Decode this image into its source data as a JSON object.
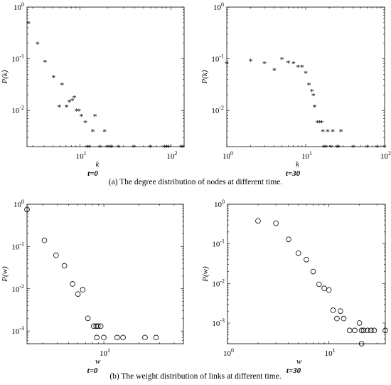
{
  "captions": {
    "top": "(a) The degree distribution of nodes at different time.",
    "bottom": "(b) The weight distribution of links at different time."
  },
  "chart_data": [
    {
      "type": "scatter",
      "marker": "asterisk",
      "xlabel": "k",
      "ylabel": "P(k)",
      "subtitle": "t=0",
      "xscale": "log",
      "yscale": "log",
      "xlim": [
        2.6,
        140
      ],
      "ylim": [
        0.002,
        1
      ],
      "xticks": [
        {
          "v": 10,
          "b": "10",
          "e": "1"
        },
        {
          "v": 100,
          "b": "10",
          "e": "2"
        }
      ],
      "yticks": [
        {
          "v": 0.01,
          "b": "10",
          "e": "-2"
        },
        {
          "v": 0.1,
          "b": "10",
          "e": "-1"
        },
        {
          "v": 1,
          "b": "10",
          "e": "0"
        }
      ],
      "points": [
        [
          2.7,
          0.5
        ],
        [
          3.4,
          0.2
        ],
        [
          4.1,
          0.088
        ],
        [
          5.1,
          0.045
        ],
        [
          6.3,
          0.032
        ],
        [
          5.9,
          0.012
        ],
        [
          7.1,
          0.012
        ],
        [
          7.6,
          0.015
        ],
        [
          8.2,
          0.016
        ],
        [
          8.6,
          0.018
        ],
        [
          9.1,
          0.01
        ],
        [
          9.7,
          0.01
        ],
        [
          10.3,
          0.008
        ],
        [
          11.4,
          0.006
        ],
        [
          11.9,
          0.002
        ],
        [
          12.6,
          0.002
        ],
        [
          13.8,
          0.004
        ],
        [
          14.6,
          0.008
        ],
        [
          16.6,
          0.002
        ],
        [
          18.6,
          0.004
        ],
        [
          19.8,
          0.002
        ],
        [
          21.4,
          0.002
        ],
        [
          22.2,
          0.002
        ],
        [
          26.5,
          0.002
        ],
        [
          39,
          0.002
        ],
        [
          59,
          0.002
        ],
        [
          85,
          0.002
        ],
        [
          90,
          0.002
        ],
        [
          95,
          0.002
        ],
        [
          130,
          0.002
        ],
        [
          136,
          0.002
        ]
      ]
    },
    {
      "type": "scatter",
      "marker": "asterisk",
      "xlabel": "k",
      "ylabel": "P(k)",
      "subtitle": "t=30",
      "xscale": "log",
      "yscale": "log",
      "xlim": [
        1,
        100
      ],
      "ylim": [
        0.002,
        1
      ],
      "xticks": [
        {
          "v": 1,
          "b": "10",
          "e": "0"
        },
        {
          "v": 10,
          "b": "10",
          "e": "1"
        },
        {
          "v": 100,
          "b": "10",
          "e": "2"
        }
      ],
      "yticks": [
        {
          "v": 0.01,
          "b": "10",
          "e": "-2"
        },
        {
          "v": 0.1,
          "b": "10",
          "e": "-1"
        },
        {
          "v": 1,
          "b": "10",
          "e": "0"
        }
      ],
      "points": [
        [
          1,
          0.083
        ],
        [
          2,
          0.093
        ],
        [
          3,
          0.083
        ],
        [
          4,
          0.061
        ],
        [
          5,
          0.1
        ],
        [
          6,
          0.085
        ],
        [
          7,
          0.083
        ],
        [
          8,
          0.071
        ],
        [
          9,
          0.071
        ],
        [
          10,
          0.054
        ],
        [
          11,
          0.032
        ],
        [
          12,
          0.024
        ],
        [
          12.5,
          0.02
        ],
        [
          13,
          0.012
        ],
        [
          14,
          0.006
        ],
        [
          15,
          0.006
        ],
        [
          16,
          0.006
        ],
        [
          16.5,
          0.004
        ],
        [
          17,
          0.002
        ],
        [
          18,
          0.002
        ],
        [
          19,
          0.004
        ],
        [
          21,
          0.002
        ],
        [
          22,
          0.004
        ],
        [
          25,
          0.002
        ],
        [
          26,
          0.002
        ],
        [
          28,
          0.004
        ],
        [
          40,
          0.002
        ],
        [
          60,
          0.002
        ],
        [
          80,
          0.002
        ],
        [
          100,
          0.002
        ]
      ]
    },
    {
      "type": "scatter",
      "marker": "circle",
      "xlabel": "w",
      "ylabel": "P(w)",
      "subtitle": "t=0",
      "xscale": "log",
      "yscale": "log",
      "xlim": [
        2.2,
        48
      ],
      "ylim": [
        0.0005,
        1
      ],
      "xticks": [
        {
          "v": 10,
          "b": "10",
          "e": "1"
        }
      ],
      "yticks": [
        {
          "v": 0.001,
          "b": "10",
          "e": "-3"
        },
        {
          "v": 0.01,
          "b": "10",
          "e": "-2"
        },
        {
          "v": 0.1,
          "b": "10",
          "e": "-1"
        },
        {
          "v": 1,
          "b": "10",
          "e": "0"
        }
      ],
      "points": [
        [
          2.2,
          0.75
        ],
        [
          3.1,
          0.14
        ],
        [
          3.9,
          0.062
        ],
        [
          4.6,
          0.035
        ],
        [
          5.4,
          0.013
        ],
        [
          6,
          0.0075
        ],
        [
          6.6,
          0.0095
        ],
        [
          7.3,
          0.002
        ],
        [
          8.2,
          0.0013
        ],
        [
          8.6,
          0.0013
        ],
        [
          8.9,
          0.0013
        ],
        [
          9.4,
          0.0013
        ],
        [
          8.7,
          0.0007
        ],
        [
          10,
          0.0007
        ],
        [
          13,
          0.0007
        ],
        [
          14.6,
          0.0007
        ],
        [
          22.5,
          0.0007
        ],
        [
          28,
          0.0007
        ]
      ]
    },
    {
      "type": "scatter",
      "marker": "circle",
      "xlabel": "w",
      "ylabel": "P(w)",
      "subtitle": "t=30",
      "xscale": "log",
      "yscale": "log",
      "xlim": [
        1,
        36
      ],
      "ylim": [
        0.0003,
        1
      ],
      "xticks": [
        {
          "v": 1,
          "b": "10",
          "e": "0"
        },
        {
          "v": 10,
          "b": "10",
          "e": "1"
        }
      ],
      "yticks": [
        {
          "v": 0.001,
          "b": "10",
          "e": "-3"
        },
        {
          "v": 0.01,
          "b": "10",
          "e": "-2"
        },
        {
          "v": 0.1,
          "b": "10",
          "e": "-1"
        },
        {
          "v": 1,
          "b": "10",
          "e": "0"
        }
      ],
      "points": [
        [
          2,
          0.38
        ],
        [
          3,
          0.33
        ],
        [
          4,
          0.13
        ],
        [
          5,
          0.058
        ],
        [
          6,
          0.04
        ],
        [
          7,
          0.02
        ],
        [
          8,
          0.0095
        ],
        [
          9,
          0.0075
        ],
        [
          10,
          0.0068
        ],
        [
          11,
          0.0021
        ],
        [
          12,
          0.0013
        ],
        [
          13,
          0.002
        ],
        [
          14,
          0.0013
        ],
        [
          16,
          0.00065
        ],
        [
          18,
          0.00065
        ],
        [
          20,
          0.001
        ],
        [
          21,
          0.00065
        ],
        [
          22,
          0.00065
        ],
        [
          24,
          0.00065
        ],
        [
          26,
          0.00065
        ],
        [
          28,
          0.00065
        ],
        [
          21,
          0.0003
        ],
        [
          36,
          0.00065
        ]
      ]
    }
  ]
}
